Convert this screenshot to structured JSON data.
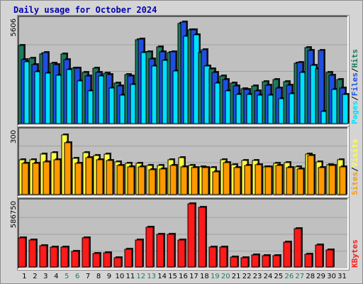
{
  "title": "Daily usage for October 2024",
  "colors": {
    "pages": "#00e0ff",
    "files": "#1f4fe0",
    "hits": "#207a5c",
    "visits": "#ffff40",
    "sites": "#ff9900",
    "kbytes": "#ff1a1a",
    "weekend_label": "#1f7a5c",
    "weekday_label": "#000000",
    "plot_bg": "#c0c0c0",
    "page_bg": "#d4d4d4"
  },
  "chart_data": [
    {
      "type": "bar",
      "name": "hits-files-pages",
      "max_label": "5606",
      "ylim": [
        0,
        5606
      ],
      "legend": [
        "Pages",
        "/",
        "Files",
        "/",
        "Hits"
      ],
      "categories": [
        "1",
        "2",
        "3",
        "4",
        "5",
        "6",
        "7",
        "8",
        "9",
        "10",
        "11",
        "12",
        "13",
        "14",
        "15",
        "16",
        "17",
        "18",
        "19",
        "20",
        "21",
        "22",
        "23",
        "24",
        "25",
        "26",
        "27",
        "28",
        "29",
        "30",
        "31"
      ],
      "series": [
        {
          "name": "Hits",
          "values": [
            4300,
            3600,
            3800,
            3300,
            3800,
            3050,
            2800,
            3050,
            2750,
            2200,
            2700,
            4600,
            3950,
            4200,
            3900,
            5500,
            5150,
            3900,
            3000,
            2600,
            2200,
            1900,
            2050,
            2300,
            2400,
            2300,
            3300,
            4150,
            3000,
            2800,
            2400
          ]
        },
        {
          "name": "Files",
          "values": [
            3500,
            3250,
            3900,
            3250,
            3500,
            3050,
            2600,
            2800,
            2700,
            2050,
            2600,
            4650,
            3550,
            3950,
            3950,
            5550,
            5150,
            4050,
            2800,
            2400,
            2050,
            1850,
            1800,
            2100,
            1950,
            2100,
            3350,
            4000,
            4000,
            2650,
            1950
          ]
        },
        {
          "name": "Pages",
          "values": [
            3400,
            2850,
            2750,
            2650,
            2950,
            2350,
            1800,
            2600,
            1950,
            1550,
            2150,
            3900,
            3150,
            3450,
            2900,
            4800,
            4850,
            3150,
            2200,
            1800,
            1600,
            1600,
            1550,
            1550,
            1350,
            1650,
            2800,
            3200,
            650,
            1850,
            1600
          ]
        }
      ]
    },
    {
      "type": "bar",
      "name": "visits-sites",
      "max_label": "300",
      "ylim": [
        0,
        300
      ],
      "legend": [
        "Sites",
        "/",
        "Visits"
      ],
      "categories": [
        "1",
        "2",
        "3",
        "4",
        "5",
        "6",
        "7",
        "8",
        "9",
        "10",
        "11",
        "12",
        "13",
        "14",
        "15",
        "16",
        "17",
        "18",
        "19",
        "20",
        "21",
        "22",
        "23",
        "24",
        "25",
        "26",
        "27",
        "28",
        "29",
        "30",
        "31"
      ],
      "series": [
        {
          "name": "Visits",
          "values": [
            170,
            170,
            195,
            205,
            290,
            175,
            205,
            190,
            195,
            160,
            150,
            150,
            140,
            140,
            170,
            180,
            140,
            135,
            130,
            170,
            145,
            165,
            165,
            135,
            150,
            155,
            135,
            195,
            160,
            145,
            170
          ]
        },
        {
          "name": "Sites",
          "values": [
            150,
            150,
            160,
            170,
            250,
            150,
            180,
            170,
            165,
            140,
            135,
            135,
            120,
            125,
            140,
            135,
            130,
            130,
            110,
            155,
            130,
            140,
            145,
            135,
            140,
            130,
            125,
            190,
            130,
            140,
            135
          ]
        }
      ]
    },
    {
      "type": "bar",
      "name": "kbytes",
      "max_label": "586750",
      "ylim": [
        0,
        586750
      ],
      "legend": [
        "KBytes"
      ],
      "categories": [
        "1",
        "2",
        "3",
        "4",
        "5",
        "6",
        "7",
        "8",
        "9",
        "10",
        "11",
        "12",
        "13",
        "14",
        "15",
        "16",
        "17",
        "18",
        "19",
        "20",
        "21",
        "22",
        "23",
        "24",
        "25",
        "26",
        "27",
        "28",
        "29",
        "30",
        "31"
      ],
      "series": [
        {
          "name": "KBytes",
          "values": [
            270000,
            250000,
            196000,
            187000,
            187000,
            148000,
            270000,
            128000,
            132000,
            88000,
            165000,
            250000,
            372000,
            301000,
            304000,
            250000,
            586750,
            556000,
            185000,
            185000,
            92000,
            83000,
            110000,
            106000,
            107000,
            233000,
            354000,
            121000,
            205000,
            158000,
            0
          ]
        }
      ]
    }
  ]
}
